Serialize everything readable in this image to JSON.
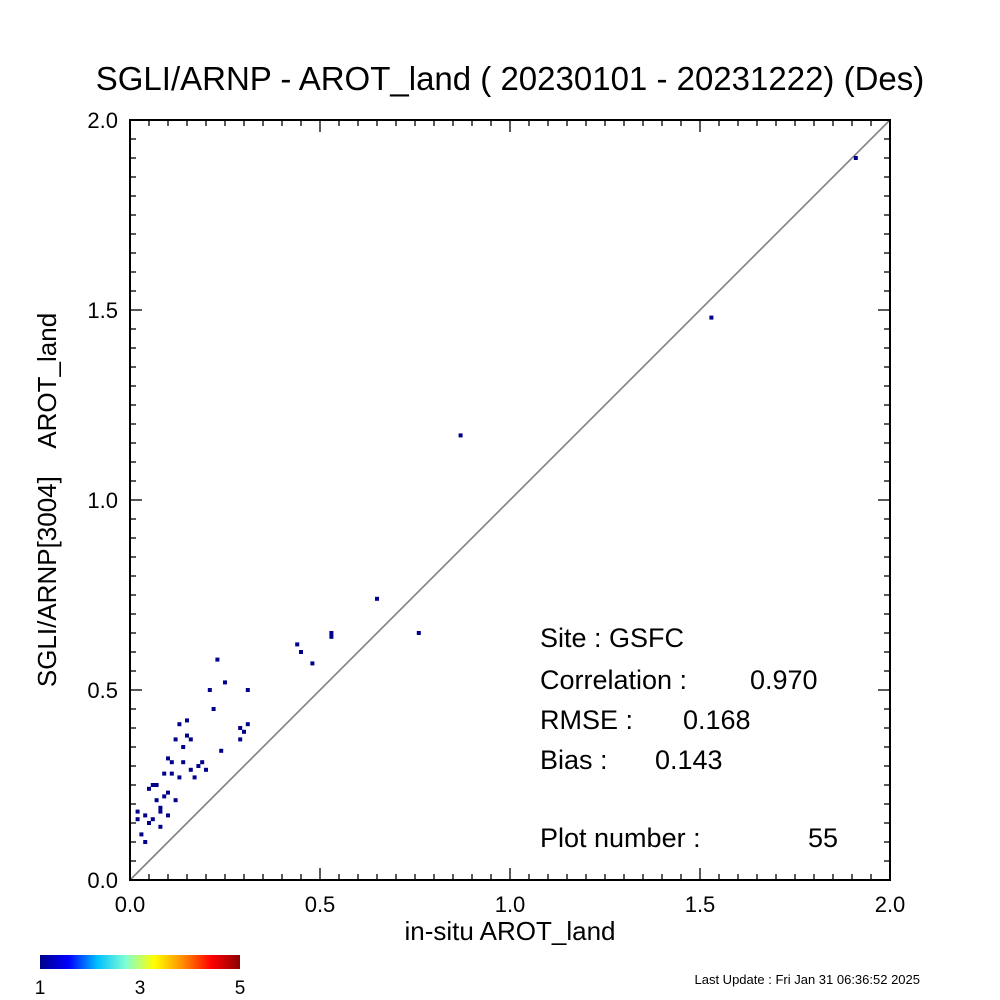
{
  "chart_data": {
    "type": "scatter",
    "title": "SGLI/ARNP - AROT_land ( 20230101 - 20231222) (Des)",
    "xlabel": "in-situ AROT_land",
    "ylabel": "SGLI/ARNP[3004]    AROT_land",
    "xlim": [
      0,
      2
    ],
    "ylim": [
      0,
      2
    ],
    "xticks": [
      "0.0",
      "0.5",
      "1.0",
      "1.5",
      "2.0"
    ],
    "yticks": [
      "0.0",
      "0.5",
      "1.0",
      "1.5",
      "2.0"
    ],
    "one_to_one_line": true,
    "point_color": "#00008b",
    "points": [
      [
        0.02,
        0.18
      ],
      [
        0.03,
        0.12
      ],
      [
        0.04,
        0.17
      ],
      [
        0.04,
        0.1
      ],
      [
        0.05,
        0.24
      ],
      [
        0.06,
        0.25
      ],
      [
        0.06,
        0.16
      ],
      [
        0.07,
        0.25
      ],
      [
        0.07,
        0.21
      ],
      [
        0.08,
        0.14
      ],
      [
        0.08,
        0.18
      ],
      [
        0.09,
        0.22
      ],
      [
        0.09,
        0.28
      ],
      [
        0.1,
        0.32
      ],
      [
        0.1,
        0.23
      ],
      [
        0.1,
        0.17
      ],
      [
        0.11,
        0.31
      ],
      [
        0.12,
        0.37
      ],
      [
        0.12,
        0.21
      ],
      [
        0.13,
        0.41
      ],
      [
        0.13,
        0.27
      ],
      [
        0.14,
        0.31
      ],
      [
        0.15,
        0.42
      ],
      [
        0.15,
        0.38
      ],
      [
        0.16,
        0.37
      ],
      [
        0.16,
        0.29
      ],
      [
        0.17,
        0.27
      ],
      [
        0.18,
        0.3
      ],
      [
        0.2,
        0.29
      ],
      [
        0.21,
        0.5
      ],
      [
        0.22,
        0.45
      ],
      [
        0.23,
        0.58
      ],
      [
        0.24,
        0.34
      ],
      [
        0.25,
        0.52
      ],
      [
        0.29,
        0.4
      ],
      [
        0.29,
        0.37
      ],
      [
        0.3,
        0.39
      ],
      [
        0.31,
        0.41
      ],
      [
        0.31,
        0.5
      ],
      [
        0.44,
        0.62
      ],
      [
        0.45,
        0.6
      ],
      [
        0.48,
        0.57
      ],
      [
        0.53,
        0.64
      ],
      [
        0.65,
        0.74
      ],
      [
        0.76,
        0.65
      ],
      [
        0.87,
        1.17
      ],
      [
        1.53,
        1.48
      ],
      [
        1.91,
        1.9
      ],
      [
        0.02,
        0.16
      ],
      [
        0.05,
        0.15
      ],
      [
        0.08,
        0.19
      ],
      [
        0.11,
        0.28
      ],
      [
        0.14,
        0.35
      ],
      [
        0.19,
        0.31
      ],
      [
        0.53,
        0.65
      ]
    ]
  },
  "stats": {
    "site": "Site : GSFC",
    "correlation_label": "Correlation :",
    "correlation_value": "0.970",
    "rmse_label": "RMSE :",
    "rmse_value": "0.168",
    "bias_label": "Bias :",
    "bias_value": "0.143",
    "plot_number_label": "Plot number :",
    "plot_number_value": "55"
  },
  "colorbar": {
    "colors": [
      "#00008b",
      "#0000ff",
      "#00bfff",
      "#7fffd4",
      "#ffff00",
      "#ff8c00",
      "#ff0000",
      "#8b0000"
    ],
    "labels": [
      "1",
      "3",
      "5"
    ]
  },
  "footer": {
    "last_update": "Last Update : Fri Jan 31 06:36:52 2025"
  }
}
